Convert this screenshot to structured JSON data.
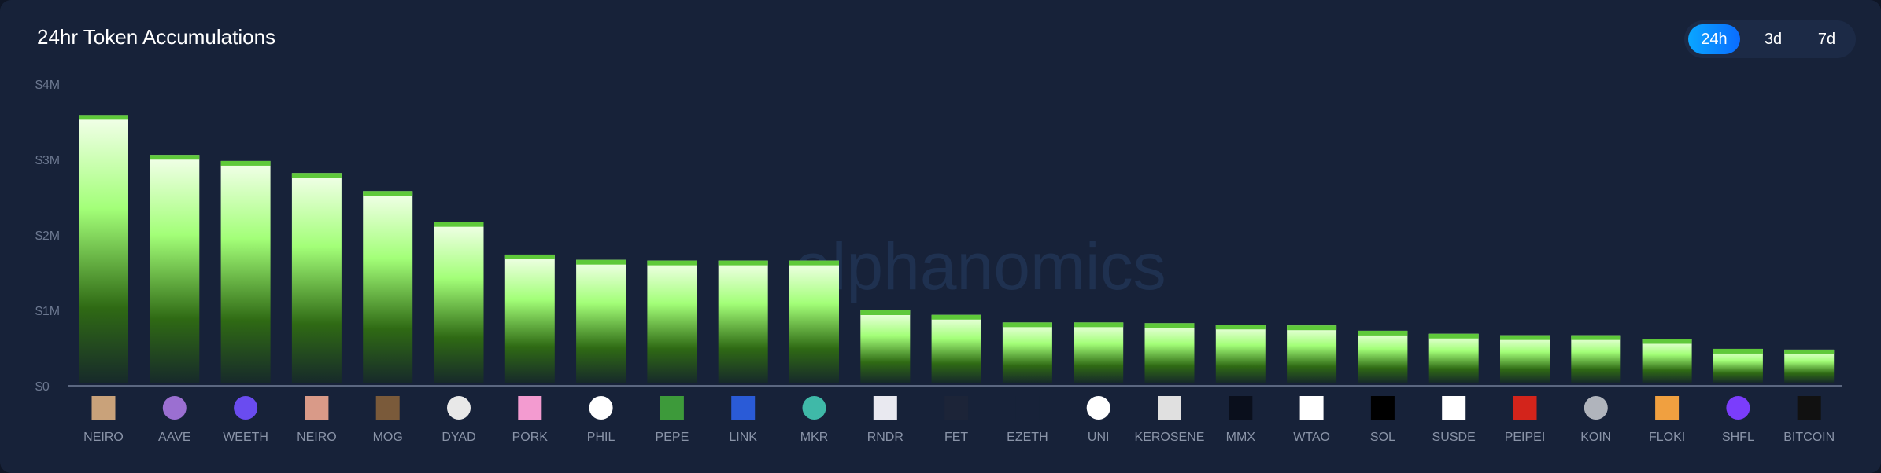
{
  "header": {
    "title": "24hr Token Accumulations"
  },
  "range_toggle": {
    "options": [
      "24h",
      "3d",
      "7d"
    ],
    "selected": "24h"
  },
  "watermark": "alphanomics",
  "colors": {
    "background": "#172239",
    "bar_cap": "#5fc93a",
    "bar_top": "#f2ffe8",
    "bar_mid": "#a3ff78",
    "bar_low": "#2f6a14",
    "accent": "#0a8cff"
  },
  "chart_data": {
    "type": "bar",
    "title": "24hr Token Accumulations",
    "xlabel": "",
    "ylabel": "",
    "ylim": [
      0,
      4000000
    ],
    "yticks": [
      0,
      1000000,
      2000000,
      3000000,
      4000000
    ],
    "ytick_labels": [
      "$0",
      "$1M",
      "$2M",
      "$3M",
      "$4M"
    ],
    "grid": false,
    "categories": [
      "NEIRO",
      "AAVE",
      "WEETH",
      "NEIRO",
      "MOG",
      "DYAD",
      "PORK",
      "PHIL",
      "PEPE",
      "LINK",
      "MKR",
      "RNDR",
      "FET",
      "EZETH",
      "UNI",
      "KEROSENE",
      "MMX",
      "WTAO",
      "SOL",
      "SUSDE",
      "PEIPEI",
      "KOIN",
      "FLOKI",
      "SHFL",
      "BITCOIN"
    ],
    "icons": [
      "dog-icon",
      "aave-icon",
      "weeth-icon",
      "dog-icon",
      "mog-icon",
      "dyad-icon",
      "pork-icon",
      "phil-icon",
      "pepe-icon",
      "link-icon",
      "mkr-icon",
      "rndr-icon",
      "fet-icon",
      "ezeth-icon",
      "uni-icon",
      "kerosene-icon",
      "mmx-icon",
      "wtao-icon",
      "sol-icon",
      "susde-icon",
      "peipei-icon",
      "koin-icon",
      "floki-icon",
      "shfl-icon",
      "bitcoin-icon"
    ],
    "values": [
      3590000,
      3060000,
      2980000,
      2820000,
      2580000,
      2170000,
      1740000,
      1670000,
      1660000,
      1660000,
      1660000,
      1000000,
      940000,
      840000,
      840000,
      830000,
      810000,
      800000,
      730000,
      690000,
      670000,
      670000,
      620000,
      490000,
      480000
    ]
  }
}
